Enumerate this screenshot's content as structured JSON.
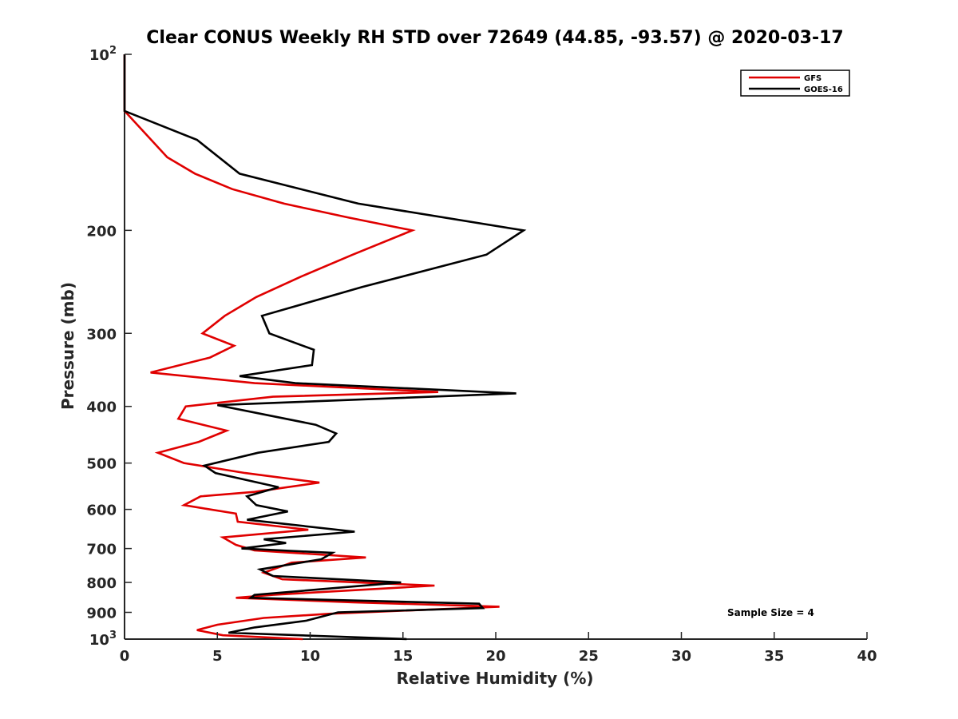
{
  "chart_data": {
    "type": "line",
    "title": "Clear CONUS Weekly RH STD over 72649 (44.85, -93.57) @ 2020-03-17",
    "xlabel": "Relative Humidity (%)",
    "ylabel": "Pressure (mb)",
    "xlim": [
      0,
      40
    ],
    "ylim": [
      100,
      1000
    ],
    "y_scale": "log",
    "y_reversed": true,
    "grid": false,
    "x_ticks": [
      "0",
      "5",
      "10",
      "15",
      "20",
      "25",
      "30",
      "35",
      "40"
    ],
    "y_ticks": [
      {
        "value": 100,
        "base": "10",
        "exp": "2"
      },
      {
        "value": 200,
        "label": "200"
      },
      {
        "value": 300,
        "label": "300"
      },
      {
        "value": 400,
        "label": "400"
      },
      {
        "value": 500,
        "label": "500"
      },
      {
        "value": 600,
        "label": "600"
      },
      {
        "value": 700,
        "label": "700"
      },
      {
        "value": 800,
        "label": "800"
      },
      {
        "value": 900,
        "label": "900"
      },
      {
        "value": 1000,
        "base": "10",
        "exp": "3"
      }
    ],
    "legend_position": "top-right",
    "annotation": "Sample Size = 4",
    "series": [
      {
        "name": "GFS",
        "color": "#e00000",
        "points": [
          [
            0,
            100
          ],
          [
            0,
            125
          ],
          [
            2.3,
            150
          ],
          [
            3.8,
            160
          ],
          [
            5.8,
            170
          ],
          [
            8.6,
            180
          ],
          [
            12,
            190
          ],
          [
            15.5,
            200
          ],
          [
            12.3,
            220
          ],
          [
            9.5,
            240
          ],
          [
            7.1,
            260
          ],
          [
            5.4,
            280
          ],
          [
            4.2,
            300
          ],
          [
            5.9,
            315
          ],
          [
            4.6,
            330
          ],
          [
            1.4,
            350
          ],
          [
            7,
            365
          ],
          [
            16.9,
            378
          ],
          [
            8,
            385
          ],
          [
            3.3,
            400
          ],
          [
            2.9,
            420
          ],
          [
            5.5,
            440
          ],
          [
            4,
            460
          ],
          [
            1.8,
            480
          ],
          [
            3.2,
            500
          ],
          [
            6.5,
            520
          ],
          [
            10.5,
            540
          ],
          [
            7,
            560
          ],
          [
            4.1,
            570
          ],
          [
            3.2,
            590
          ],
          [
            6,
            610
          ],
          [
            6.1,
            630
          ],
          [
            9.9,
            650
          ],
          [
            5.3,
            670
          ],
          [
            6,
            690
          ],
          [
            7,
            705
          ],
          [
            13,
            725
          ],
          [
            9,
            740
          ],
          [
            7.5,
            770
          ],
          [
            8.5,
            790
          ],
          [
            16.7,
            810
          ],
          [
            8,
            840
          ],
          [
            6,
            850
          ],
          [
            12.3,
            865
          ],
          [
            20.2,
            880
          ],
          [
            11,
            905
          ],
          [
            7.5,
            920
          ],
          [
            5,
            945
          ],
          [
            3.9,
            965
          ],
          [
            5.3,
            985
          ],
          [
            9.6,
            1000
          ]
        ]
      },
      {
        "name": "GOES-16",
        "color": "#000000",
        "points": [
          [
            0,
            100
          ],
          [
            0,
            125
          ],
          [
            3.9,
            140
          ],
          [
            6.2,
            160
          ],
          [
            12.6,
            180
          ],
          [
            21.5,
            200
          ],
          [
            19.5,
            220
          ],
          [
            12.8,
            250
          ],
          [
            7.4,
            280
          ],
          [
            7.8,
            300
          ],
          [
            10.2,
            320
          ],
          [
            10.1,
            340
          ],
          [
            6.2,
            355
          ],
          [
            9.2,
            365
          ],
          [
            21.1,
            380
          ],
          [
            5,
            398
          ],
          [
            10.3,
            430
          ],
          [
            11.4,
            445
          ],
          [
            11,
            460
          ],
          [
            7.2,
            480
          ],
          [
            4.3,
            505
          ],
          [
            4.9,
            520
          ],
          [
            8.3,
            550
          ],
          [
            6.6,
            570
          ],
          [
            7.1,
            590
          ],
          [
            8.8,
            605
          ],
          [
            6.6,
            625
          ],
          [
            12.4,
            655
          ],
          [
            7.5,
            675
          ],
          [
            8.7,
            685
          ],
          [
            6.3,
            700
          ],
          [
            11.2,
            712
          ],
          [
            10.6,
            730
          ],
          [
            7.3,
            760
          ],
          [
            8,
            780
          ],
          [
            14.9,
            800
          ],
          [
            7,
            840
          ],
          [
            6.8,
            850
          ],
          [
            19.1,
            870
          ],
          [
            19.3,
            885
          ],
          [
            11.5,
            900
          ],
          [
            9.8,
            930
          ],
          [
            7,
            955
          ],
          [
            5.6,
            975
          ],
          [
            15.2,
            1000
          ]
        ]
      }
    ]
  }
}
